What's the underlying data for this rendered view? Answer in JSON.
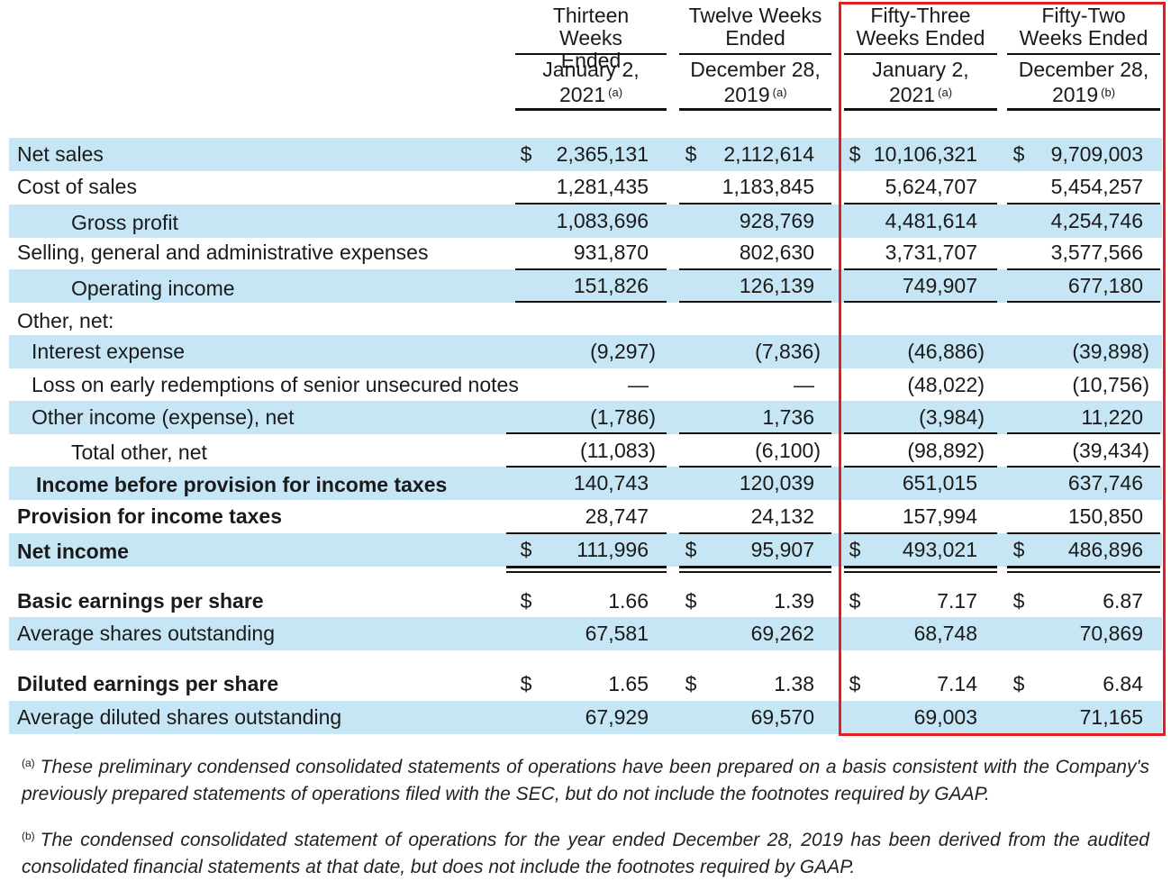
{
  "columns": [
    {
      "top": "Thirteen Weeks Ended",
      "bottom": "January 2, 2021",
      "note": "(a)"
    },
    {
      "top": "Twelve Weeks Ended",
      "bottom": "December 28, 2019",
      "note": "(a)"
    },
    {
      "top": "Fifty-Three Weeks Ended",
      "bottom": "January 2, 2021",
      "note": "(a)"
    },
    {
      "top": "Fifty-Two Weeks Ended",
      "bottom": "December 28, 2019",
      "note": "(b)"
    }
  ],
  "currency_symbol": "$",
  "rows": [
    {
      "label": "Net sales",
      "values": [
        "2,365,131",
        "2,112,614",
        "10,106,321",
        "9,709,003"
      ]
    },
    {
      "label": "Cost of sales",
      "values": [
        "1,281,435",
        "1,183,845",
        "5,624,707",
        "5,454,257"
      ]
    },
    {
      "label": "Gross profit",
      "values": [
        "1,083,696",
        "928,769",
        "4,481,614",
        "4,254,746"
      ]
    },
    {
      "label": "Selling, general and administrative expenses",
      "values": [
        "931,870",
        "802,630",
        "3,731,707",
        "3,577,566"
      ]
    },
    {
      "label": "Operating income",
      "values": [
        "151,826",
        "126,139",
        "749,907",
        "677,180"
      ]
    },
    {
      "label": "Other, net:",
      "values": []
    },
    {
      "label": "Interest expense",
      "values": [
        "(9,297)",
        "(7,836)",
        "(46,886)",
        "(39,898)"
      ]
    },
    {
      "label": "Loss on early redemptions of senior unsecured notes",
      "values": [
        "—",
        "—",
        "(48,022)",
        "(10,756)"
      ]
    },
    {
      "label": "Other income (expense), net",
      "values": [
        "(1,786)",
        "1,736",
        "(3,984)",
        "11,220"
      ]
    },
    {
      "label": "Total other, net",
      "values": [
        "(11,083)",
        "(6,100)",
        "(98,892)",
        "(39,434)"
      ]
    },
    {
      "label": "Income before provision for income taxes",
      "values": [
        "140,743",
        "120,039",
        "651,015",
        "637,746"
      ]
    },
    {
      "label": "Provision for income taxes",
      "values": [
        "28,747",
        "24,132",
        "157,994",
        "150,850"
      ]
    },
    {
      "label": "Net income",
      "values": [
        "111,996",
        "95,907",
        "493,021",
        "486,896"
      ]
    },
    {
      "label": "Basic earnings per share",
      "values": [
        "1.66",
        "1.39",
        "7.17",
        "6.87"
      ]
    },
    {
      "label": "Average shares outstanding",
      "values": [
        "67,581",
        "69,262",
        "68,748",
        "70,869"
      ]
    },
    {
      "label": "Diluted earnings per share",
      "values": [
        "1.65",
        "1.38",
        "7.14",
        "6.84"
      ]
    },
    {
      "label": "Average diluted shares outstanding",
      "values": [
        "67,929",
        "69,570",
        "69,003",
        "71,165"
      ]
    }
  ],
  "footnotes": [
    {
      "mark": "(a)",
      "text": "These preliminary condensed consolidated statements of operations have been prepared on a basis consistent with the Company's previously prepared statements of operations filed with the SEC, but do not include the footnotes required by GAAP."
    },
    {
      "mark": "(b)",
      "text": "The condensed consolidated statement of operations for the year ended December 28, 2019 has been derived from the audited consolidated financial statements at that date, but does not include the footnotes required by GAAP."
    }
  ],
  "colors": {
    "row_shade": "#c6e6f5",
    "highlight_border": "#e02020"
  }
}
